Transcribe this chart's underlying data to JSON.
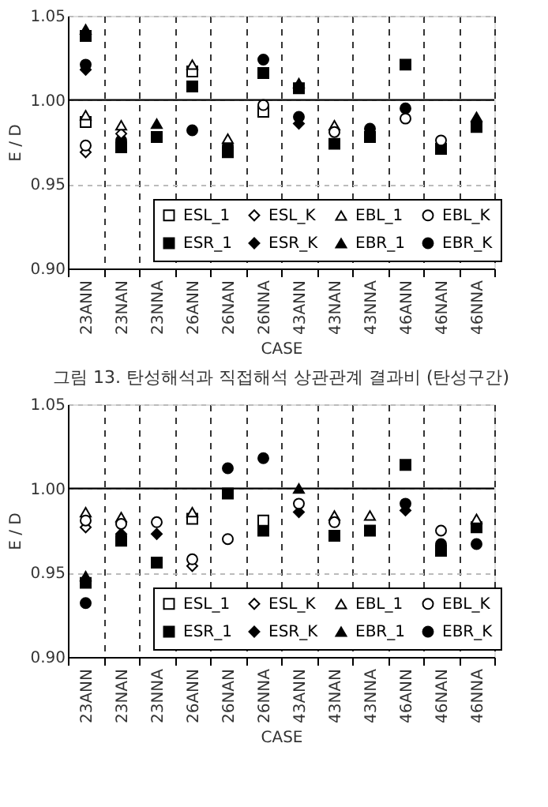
{
  "chart_data": [
    {
      "type": "scatter",
      "xlabel": "CASE",
      "ylabel": "E / D",
      "annotations": [
        "그림 13. 탄성해석과 직접해석 상관관계 결과비 (탄성구간)"
      ],
      "categories": [
        "23ANN",
        "23NAN",
        "23NNA",
        "26ANN",
        "26NAN",
        "26NNA",
        "43ANN",
        "43NAN",
        "43NNA",
        "46ANN",
        "46NAN",
        "46NNA"
      ],
      "ylim": [
        0.9,
        1.05
      ],
      "yticks": [
        {
          "value": 0.9,
          "label": "0.90"
        },
        {
          "value": 0.95,
          "label": "0.95"
        },
        {
          "value": 1.0,
          "label": "1.00"
        },
        {
          "value": 1.05,
          "label": "1.05"
        }
      ],
      "grid": true,
      "legend": "bottom",
      "ref_lines": [
        {
          "axis": "y",
          "value": 1.0,
          "color": "#000000"
        }
      ],
      "series": [
        {
          "name": "ESL_1",
          "color": "#ffffff",
          "marker": "square",
          "values": [
            0.987,
            null,
            null,
            1.017,
            null,
            0.993,
            null,
            null,
            null,
            null,
            null,
            null
          ]
        },
        {
          "name": "ESL_K",
          "color": "#ffffff",
          "marker": "diamond",
          "values": [
            0.969,
            0.98,
            null,
            null,
            null,
            null,
            null,
            null,
            null,
            null,
            null,
            null
          ]
        },
        {
          "name": "EBL_1",
          "color": "#ffffff",
          "marker": "triangle",
          "values": [
            0.991,
            0.985,
            null,
            1.021,
            0.977,
            null,
            null,
            0.985,
            null,
            null,
            null,
            null
          ]
        },
        {
          "name": "EBL_K",
          "color": "#ffffff",
          "marker": "circle",
          "values": [
            0.973,
            null,
            null,
            null,
            null,
            0.997,
            null,
            0.981,
            null,
            0.989,
            0.976,
            null
          ]
        },
        {
          "name": "ESR_1",
          "color": "#000000",
          "marker": "square",
          "values": [
            1.038,
            0.972,
            0.978,
            1.008,
            0.969,
            1.016,
            1.007,
            0.974,
            0.978,
            1.021,
            0.971,
            0.984
          ]
        },
        {
          "name": "ESR_K",
          "color": "#000000",
          "marker": "diamond",
          "values": [
            1.018,
            null,
            null,
            null,
            null,
            null,
            0.986,
            null,
            null,
            null,
            null,
            null
          ]
        },
        {
          "name": "EBR_1",
          "color": "#000000",
          "marker": "triangle",
          "values": [
            1.042,
            null,
            0.986,
            null,
            null,
            null,
            1.01,
            null,
            null,
            null,
            null,
            0.99
          ]
        },
        {
          "name": "EBR_K",
          "color": "#000000",
          "marker": "circle",
          "values": [
            1.021,
            0.976,
            null,
            0.982,
            0.973,
            1.024,
            0.99,
            null,
            0.983,
            0.995,
            null,
            null
          ]
        }
      ]
    },
    {
      "type": "scatter",
      "xlabel": "CASE",
      "ylabel": "E / D",
      "categories": [
        "23ANN",
        "23NAN",
        "23NNA",
        "26ANN",
        "26NAN",
        "26NNA",
        "43ANN",
        "43NAN",
        "43NNA",
        "46ANN",
        "46NAN",
        "46NNA"
      ],
      "ylim": [
        0.9,
        1.05
      ],
      "yticks": [
        {
          "value": 0.9,
          "label": "0.90"
        },
        {
          "value": 0.95,
          "label": "0.95"
        },
        {
          "value": 1.0,
          "label": "1.00"
        },
        {
          "value": 1.05,
          "label": "1.05"
        }
      ],
      "grid": true,
      "legend": "bottom",
      "ref_lines": [
        {
          "axis": "y",
          "value": 1.0,
          "color": "#000000"
        }
      ],
      "series": [
        {
          "name": "ESL_1",
          "color": "#ffffff",
          "marker": "square",
          "values": [
            null,
            null,
            null,
            0.982,
            null,
            0.981,
            null,
            null,
            null,
            null,
            null,
            null
          ]
        },
        {
          "name": "ESL_K",
          "color": "#ffffff",
          "marker": "diamond",
          "values": [
            0.977,
            null,
            null,
            0.954,
            null,
            null,
            null,
            null,
            null,
            null,
            null,
            null
          ]
        },
        {
          "name": "EBL_1",
          "color": "#ffffff",
          "marker": "triangle",
          "values": [
            0.986,
            0.983,
            null,
            0.986,
            null,
            null,
            null,
            0.984,
            0.984,
            null,
            null,
            0.982
          ]
        },
        {
          "name": "EBL_K",
          "color": "#ffffff",
          "marker": "circle",
          "values": [
            0.981,
            0.979,
            0.98,
            0.958,
            0.97,
            null,
            0.991,
            0.98,
            null,
            null,
            0.975,
            null
          ]
        },
        {
          "name": "ESR_1",
          "color": "#000000",
          "marker": "square",
          "values": [
            0.944,
            0.969,
            0.956,
            null,
            0.997,
            0.975,
            null,
            0.972,
            0.975,
            1.014,
            0.963,
            0.977
          ]
        },
        {
          "name": "ESR_K",
          "color": "#000000",
          "marker": "diamond",
          "values": [
            null,
            0.973,
            0.973,
            null,
            null,
            null,
            0.986,
            null,
            null,
            0.987,
            null,
            null
          ]
        },
        {
          "name": "EBR_1",
          "color": "#000000",
          "marker": "triangle",
          "values": [
            0.948,
            null,
            null,
            null,
            null,
            null,
            1.0,
            null,
            null,
            null,
            null,
            null
          ]
        },
        {
          "name": "EBR_K",
          "color": "#000000",
          "marker": "circle",
          "values": [
            0.932,
            null,
            null,
            null,
            1.012,
            1.018,
            null,
            null,
            null,
            0.991,
            0.967,
            0.967
          ]
        }
      ]
    }
  ]
}
